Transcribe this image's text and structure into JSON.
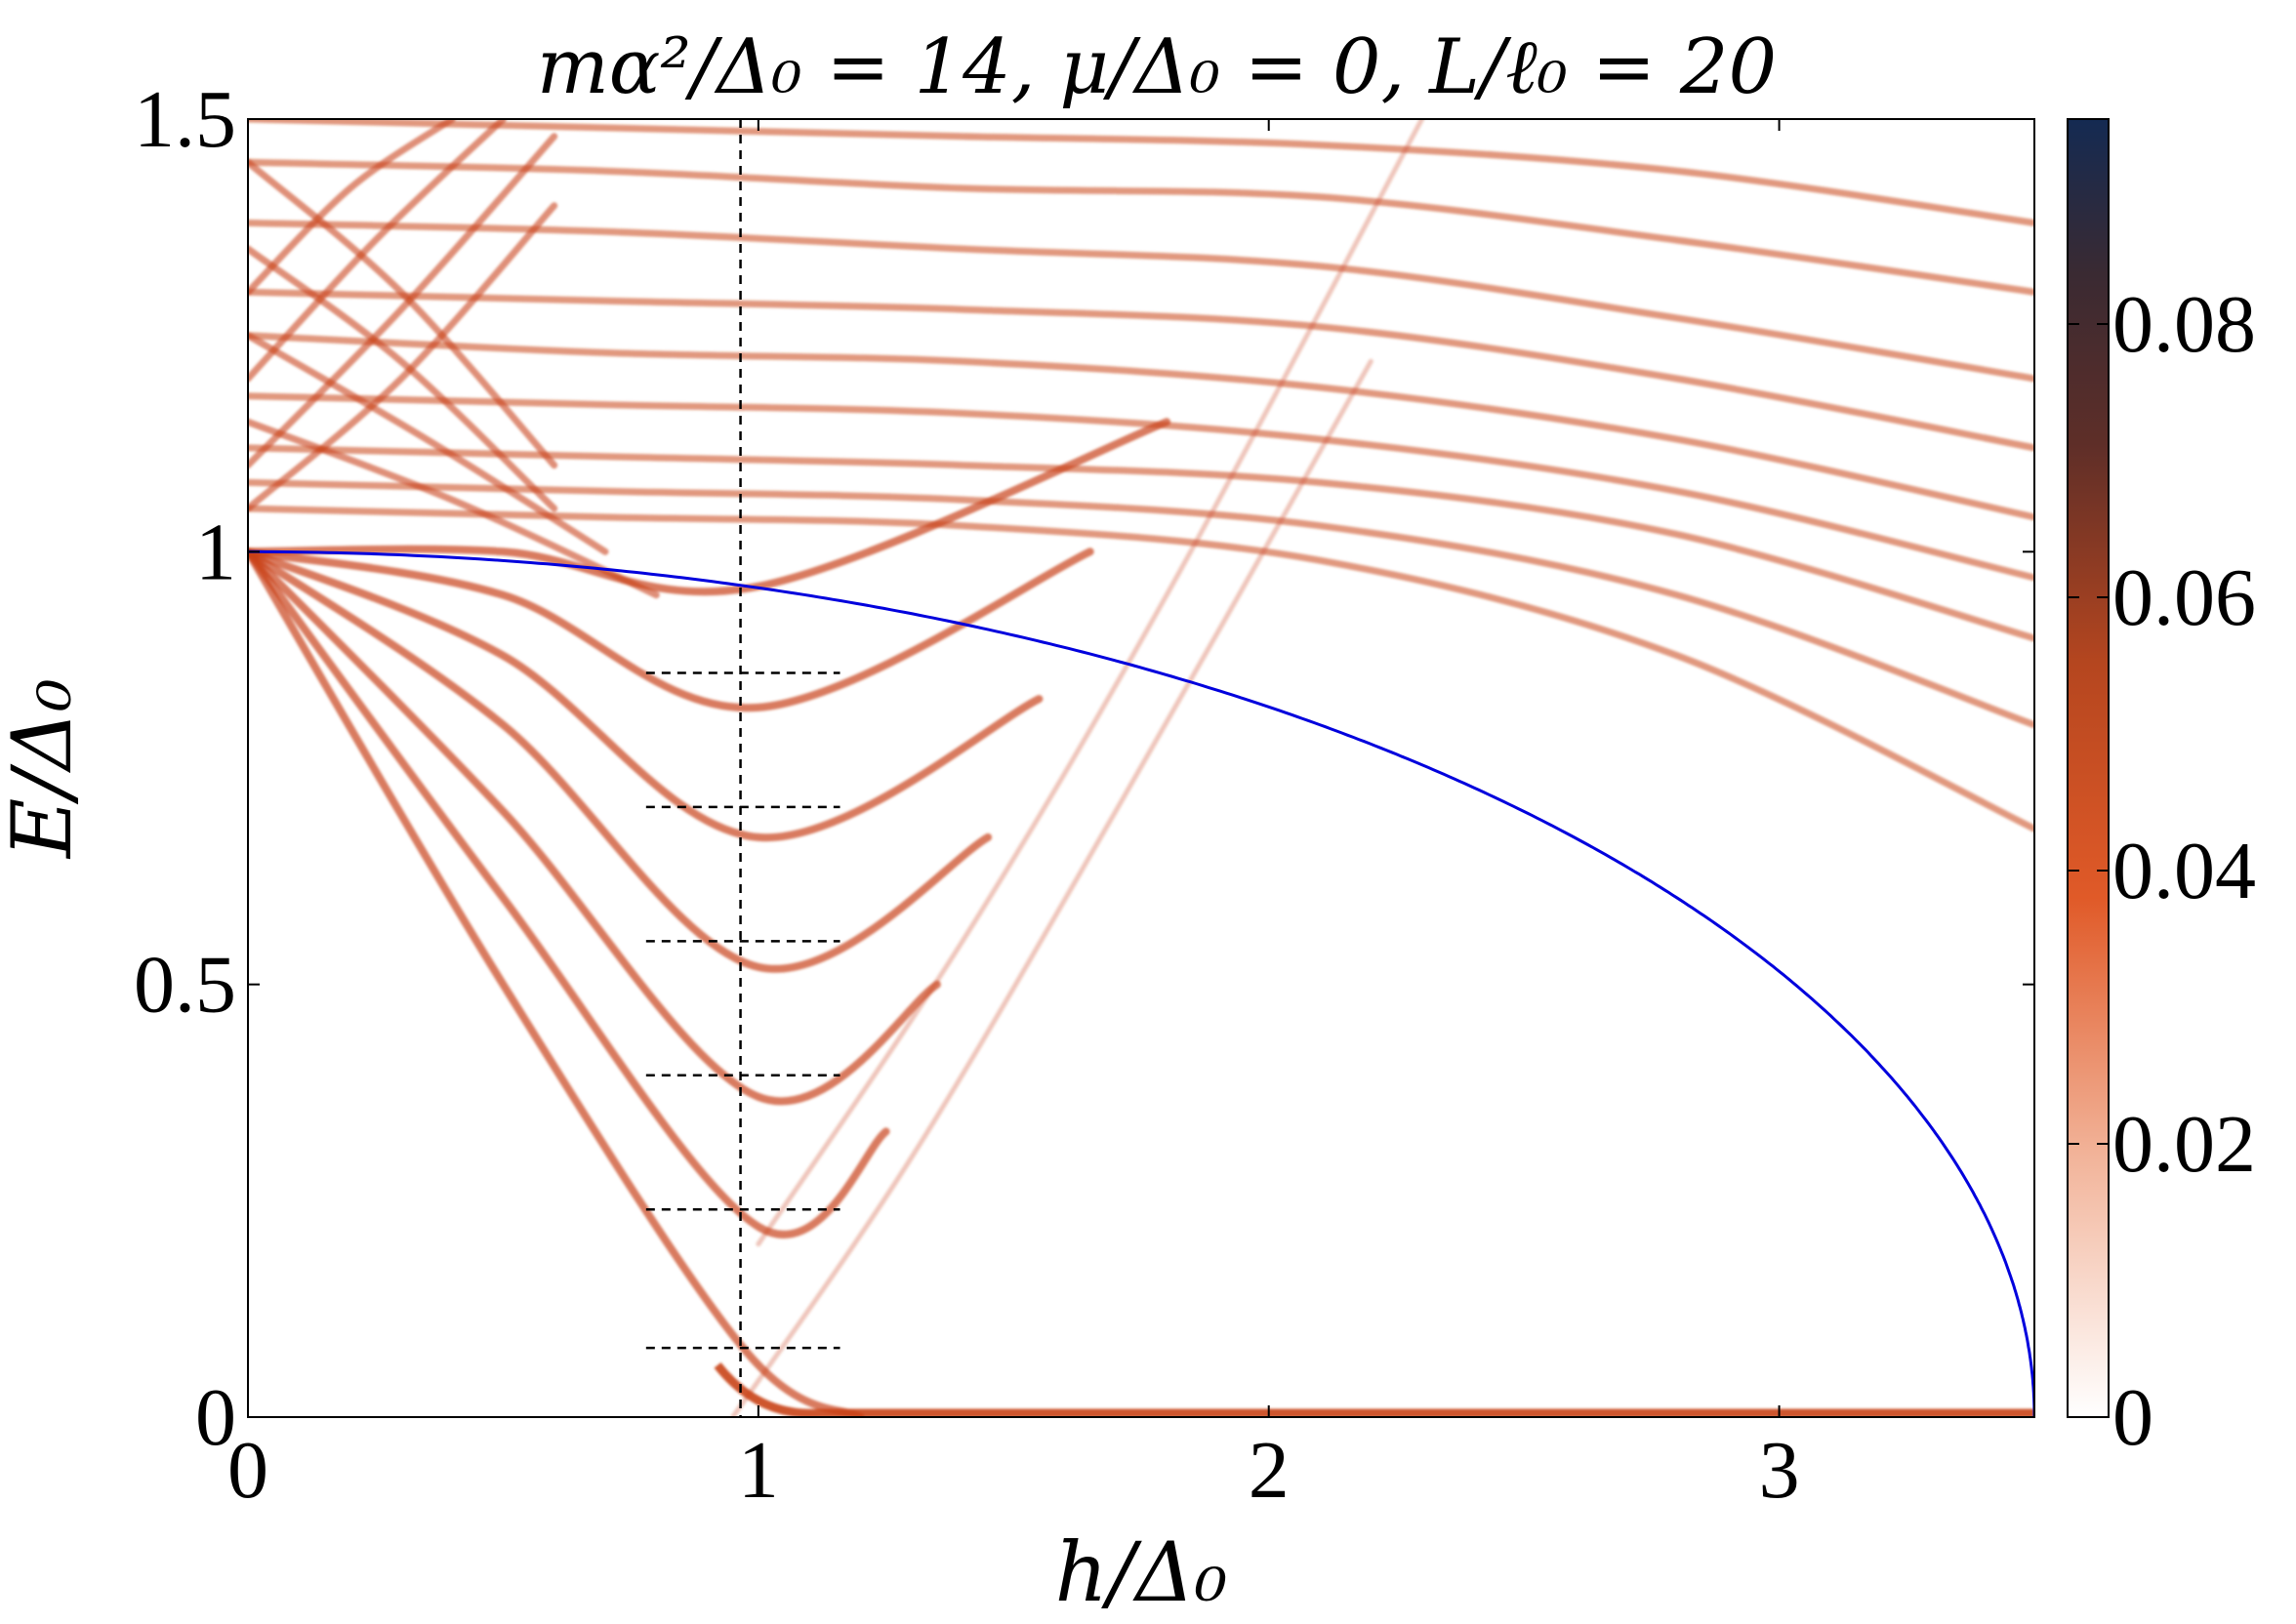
{
  "chart_data": {
    "type": "heatmap",
    "title": "mα²/Δ₀ = 14, μ/Δ₀ = 0, L/ℓ₀ = 20",
    "xlabel": "h/Δ₀",
    "ylabel": "E/Δ₀",
    "xlim": [
      0,
      3.5
    ],
    "ylim": [
      0,
      1.5
    ],
    "x_ticks": [
      {
        "value": 0,
        "label": "0"
      },
      {
        "value": 1,
        "label": "1"
      },
      {
        "value": 2,
        "label": "2"
      },
      {
        "value": 3,
        "label": "3"
      }
    ],
    "y_ticks": [
      {
        "value": 0,
        "label": "0"
      },
      {
        "value": 0.5,
        "label": "0.5"
      },
      {
        "value": 1,
        "label": "1"
      },
      {
        "value": 1.5,
        "label": "1.5"
      }
    ],
    "grid": false,
    "colorbar": {
      "min": 0,
      "max": 0.095,
      "ticks": [
        {
          "value": 0,
          "label": "0"
        },
        {
          "value": 0.02,
          "label": "0.02"
        },
        {
          "value": 0.04,
          "label": "0.04"
        },
        {
          "value": 0.06,
          "label": "0.06"
        },
        {
          "value": 0.08,
          "label": "0.08"
        }
      ],
      "colors": [
        "#ffffff",
        "#e8805a",
        "#d9501f",
        "#8a3a22",
        "#3a2a30",
        "#142a52"
      ]
    },
    "band_color": "#c9421a",
    "gap_curve": {
      "color": "#0000dd",
      "description_formula": "sqrt(1 - (h/3.5)^2)",
      "points": [
        [
          0,
          1.0
        ],
        [
          0.5,
          0.99
        ],
        [
          1.0,
          0.958
        ],
        [
          1.5,
          0.904
        ],
        [
          2.0,
          0.821
        ],
        [
          2.5,
          0.7
        ],
        [
          3.0,
          0.515
        ],
        [
          3.2,
          0.405
        ],
        [
          3.4,
          0.237
        ],
        [
          3.5,
          0.0
        ]
      ]
    },
    "dashed_vertical_x": 0.965,
    "dashed_horizontal": {
      "x_range": [
        0.78,
        1.16
      ],
      "y_values": [
        0.08,
        0.24,
        0.395,
        0.55,
        0.705,
        0.86
      ]
    },
    "zero_mode": {
      "start_h": 1.0,
      "end_h": 3.5,
      "E": 0.0
    },
    "subgap_states": [
      {
        "h": [
          0,
          0.5,
          0.97,
          1.2
        ],
        "E": [
          1.0,
          0.5,
          0.08,
          0.0
        ]
      },
      {
        "h": [
          0,
          0.5,
          1.0,
          1.25
        ],
        "E": [
          1.0,
          0.6,
          0.22,
          0.33
        ]
      },
      {
        "h": [
          0,
          0.5,
          1.0,
          1.35
        ],
        "E": [
          1.0,
          0.7,
          0.37,
          0.5
        ]
      },
      {
        "h": [
          0,
          0.5,
          1.0,
          1.45
        ],
        "E": [
          1.0,
          0.8,
          0.52,
          0.67
        ]
      },
      {
        "h": [
          0,
          0.5,
          1.0,
          1.55
        ],
        "E": [
          1.0,
          0.88,
          0.67,
          0.83
        ]
      },
      {
        "h": [
          0,
          0.5,
          1.0,
          1.65
        ],
        "E": [
          1.0,
          0.95,
          0.82,
          1.0
        ]
      },
      {
        "h": [
          0,
          0.5,
          1.0,
          1.8
        ],
        "E": [
          1.0,
          1.0,
          0.96,
          1.15
        ]
      }
    ],
    "continuum_bands": [
      {
        "h": [
          0,
          0.7,
          1.4,
          2.1,
          2.8,
          3.5
        ],
        "E": [
          1.05,
          1.04,
          1.03,
          0.99,
          0.88,
          0.68
        ]
      },
      {
        "h": [
          0,
          0.7,
          1.4,
          2.1,
          2.8,
          3.5
        ],
        "E": [
          1.08,
          1.07,
          1.06,
          1.03,
          0.95,
          0.8
        ]
      },
      {
        "h": [
          0,
          0.7,
          1.4,
          2.1,
          2.8,
          3.5
        ],
        "E": [
          1.12,
          1.11,
          1.1,
          1.08,
          1.02,
          0.9
        ]
      },
      {
        "h": [
          0,
          0.7,
          1.4,
          2.1,
          2.8,
          3.5
        ],
        "E": [
          1.18,
          1.17,
          1.16,
          1.13,
          1.07,
          0.97
        ]
      },
      {
        "h": [
          0,
          0.7,
          1.4,
          2.1,
          2.8,
          3.5
        ],
        "E": [
          1.25,
          1.23,
          1.22,
          1.19,
          1.13,
          1.04
        ]
      },
      {
        "h": [
          0,
          0.7,
          1.4,
          2.1,
          2.8,
          3.5
        ],
        "E": [
          1.3,
          1.29,
          1.28,
          1.26,
          1.2,
          1.12
        ]
      },
      {
        "h": [
          0,
          0.7,
          1.4,
          2.1,
          2.8,
          3.5
        ],
        "E": [
          1.38,
          1.37,
          1.35,
          1.33,
          1.27,
          1.2
        ]
      },
      {
        "h": [
          0,
          0.7,
          1.4,
          2.1,
          2.8,
          3.5
        ],
        "E": [
          1.45,
          1.44,
          1.42,
          1.41,
          1.36,
          1.3
        ]
      },
      {
        "h": [
          0,
          0.7,
          1.4,
          2.1,
          2.8,
          3.5
        ],
        "E": [
          1.5,
          1.49,
          1.48,
          1.47,
          1.44,
          1.38
        ]
      }
    ],
    "rising_bands": [
      {
        "h": [
          0.95,
          1.3,
          1.7,
          2.2
        ],
        "E": [
          0.0,
          0.3,
          0.7,
          1.22
        ]
      },
      {
        "h": [
          1.0,
          1.4,
          1.8,
          2.3
        ],
        "E": [
          0.2,
          0.55,
          0.95,
          1.5
        ]
      }
    ],
    "descending_bands": [
      {
        "h": [
          0,
          0.3,
          0.6
        ],
        "E": [
          1.45,
          1.3,
          1.1
        ]
      },
      {
        "h": [
          0,
          0.3,
          0.6
        ],
        "E": [
          1.35,
          1.22,
          1.05
        ]
      },
      {
        "h": [
          0,
          0.35,
          0.7
        ],
        "E": [
          1.25,
          1.13,
          1.0
        ]
      },
      {
        "h": [
          0,
          0.4,
          0.8
        ],
        "E": [
          1.15,
          1.06,
          0.95
        ]
      }
    ],
    "ascending_fan": [
      {
        "h": [
          0,
          0.3,
          0.6
        ],
        "E": [
          1.05,
          1.2,
          1.4
        ]
      },
      {
        "h": [
          0,
          0.3,
          0.6
        ],
        "E": [
          1.1,
          1.28,
          1.48
        ]
      },
      {
        "h": [
          0,
          0.25,
          0.5
        ],
        "E": [
          1.2,
          1.36,
          1.5
        ]
      },
      {
        "h": [
          0,
          0.2,
          0.4
        ],
        "E": [
          1.3,
          1.42,
          1.5
        ]
      }
    ]
  }
}
